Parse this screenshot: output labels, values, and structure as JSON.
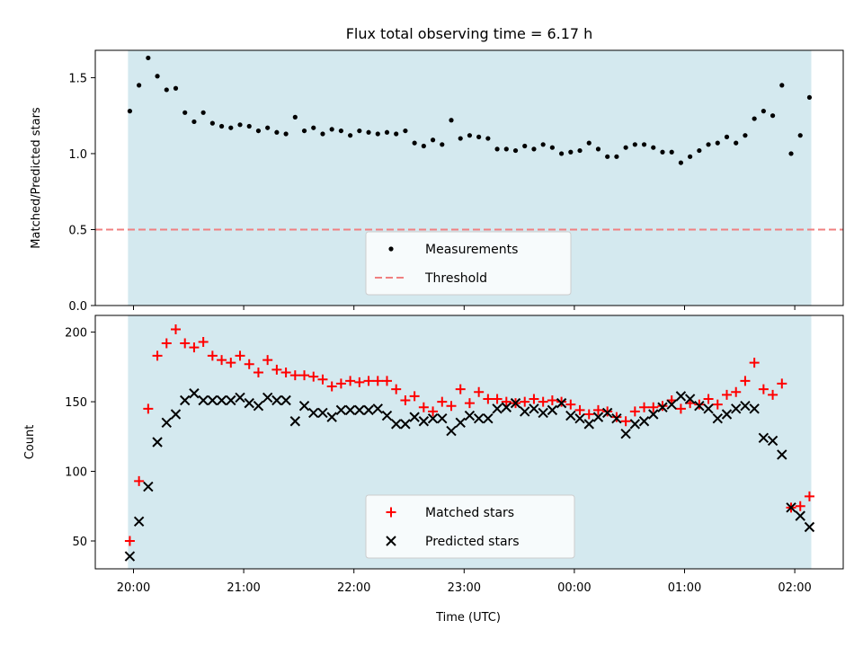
{
  "chart_data": {
    "title": "Flux total observing time = 6.17 h",
    "xlabel": "Time (UTC)",
    "x_ticks": [
      "20:00",
      "21:00",
      "22:00",
      "23:00",
      "00:00",
      "01:00",
      "02:00"
    ],
    "shaded_range": [
      "19:57",
      "02:09"
    ],
    "shade_color": "#d4e9ef",
    "panels": [
      {
        "type": "scatter",
        "ylabel": "Matched/Predicted stars",
        "ylim": [
          0,
          1.68
        ],
        "y_ticks": [
          "0.0",
          "0.5",
          "1.0",
          "1.5"
        ],
        "y_tick_values": [
          0,
          0.5,
          1.0,
          1.5
        ],
        "legend_position": "bottom-center",
        "series": [
          {
            "name": "Measurements",
            "marker": "dot",
            "color": "#000000",
            "points": [
              [
                "19:58",
                1.28
              ],
              [
                "20:03",
                1.45
              ],
              [
                "20:08",
                1.63
              ],
              [
                "20:13",
                1.51
              ],
              [
                "20:18",
                1.42
              ],
              [
                "20:23",
                1.43
              ],
              [
                "20:28",
                1.27
              ],
              [
                "20:33",
                1.21
              ],
              [
                "20:38",
                1.27
              ],
              [
                "20:43",
                1.2
              ],
              [
                "20:48",
                1.18
              ],
              [
                "20:53",
                1.17
              ],
              [
                "20:58",
                1.19
              ],
              [
                "21:03",
                1.18
              ],
              [
                "21:08",
                1.15
              ],
              [
                "21:13",
                1.17
              ],
              [
                "21:18",
                1.14
              ],
              [
                "21:23",
                1.13
              ],
              [
                "21:28",
                1.24
              ],
              [
                "21:33",
                1.15
              ],
              [
                "21:38",
                1.17
              ],
              [
                "21:43",
                1.13
              ],
              [
                "21:48",
                1.16
              ],
              [
                "21:53",
                1.15
              ],
              [
                "21:58",
                1.12
              ],
              [
                "22:03",
                1.15
              ],
              [
                "22:08",
                1.14
              ],
              [
                "22:13",
                1.13
              ],
              [
                "22:18",
                1.14
              ],
              [
                "22:23",
                1.13
              ],
              [
                "22:28",
                1.15
              ],
              [
                "22:33",
                1.07
              ],
              [
                "22:38",
                1.05
              ],
              [
                "22:43",
                1.09
              ],
              [
                "22:48",
                1.06
              ],
              [
                "22:53",
                1.22
              ],
              [
                "22:58",
                1.1
              ],
              [
                "23:03",
                1.12
              ],
              [
                "23:08",
                1.11
              ],
              [
                "23:13",
                1.1
              ],
              [
                "23:18",
                1.03
              ],
              [
                "23:23",
                1.03
              ],
              [
                "23:28",
                1.02
              ],
              [
                "23:33",
                1.05
              ],
              [
                "23:38",
                1.03
              ],
              [
                "23:43",
                1.06
              ],
              [
                "23:48",
                1.04
              ],
              [
                "23:53",
                1.0
              ],
              [
                "23:58",
                1.01
              ],
              [
                "00:03",
                1.02
              ],
              [
                "00:08",
                1.07
              ],
              [
                "00:13",
                1.03
              ],
              [
                "00:18",
                0.98
              ],
              [
                "00:23",
                0.98
              ],
              [
                "00:28",
                1.04
              ],
              [
                "00:33",
                1.06
              ],
              [
                "00:38",
                1.06
              ],
              [
                "00:43",
                1.04
              ],
              [
                "00:48",
                1.01
              ],
              [
                "00:53",
                1.01
              ],
              [
                "00:58",
                0.94
              ],
              [
                "01:03",
                0.98
              ],
              [
                "01:08",
                1.02
              ],
              [
                "01:13",
                1.06
              ],
              [
                "01:18",
                1.07
              ],
              [
                "01:23",
                1.11
              ],
              [
                "01:28",
                1.07
              ],
              [
                "01:33",
                1.12
              ],
              [
                "01:38",
                1.23
              ],
              [
                "01:43",
                1.28
              ],
              [
                "01:48",
                1.25
              ],
              [
                "01:53",
                1.45
              ],
              [
                "01:58",
                1.0
              ],
              [
                "02:03",
                1.12
              ],
              [
                "02:08",
                1.37
              ]
            ]
          },
          {
            "name": "Threshold",
            "type": "hline",
            "value": 0.5,
            "style": "dashed",
            "color": "#f08080"
          }
        ]
      },
      {
        "type": "scatter",
        "ylabel": "Count",
        "ylim": [
          30,
          212
        ],
        "y_ticks": [
          "50",
          "100",
          "150",
          "200"
        ],
        "y_tick_values": [
          50,
          100,
          150,
          200
        ],
        "legend_position": "bottom-center",
        "series": [
          {
            "name": "Matched stars",
            "marker": "plus",
            "color": "#ff0000",
            "points": [
              [
                "19:58",
                50
              ],
              [
                "20:03",
                93
              ],
              [
                "20:08",
                145
              ],
              [
                "20:13",
                183
              ],
              [
                "20:18",
                192
              ],
              [
                "20:23",
                202
              ],
              [
                "20:28",
                192
              ],
              [
                "20:33",
                189
              ],
              [
                "20:38",
                193
              ],
              [
                "20:43",
                183
              ],
              [
                "20:48",
                180
              ],
              [
                "20:53",
                178
              ],
              [
                "20:58",
                183
              ],
              [
                "21:03",
                177
              ],
              [
                "21:08",
                171
              ],
              [
                "21:13",
                180
              ],
              [
                "21:18",
                173
              ],
              [
                "21:23",
                171
              ],
              [
                "21:28",
                169
              ],
              [
                "21:33",
                169
              ],
              [
                "21:38",
                168
              ],
              [
                "21:43",
                166
              ],
              [
                "21:48",
                161
              ],
              [
                "21:53",
                163
              ],
              [
                "21:58",
                165
              ],
              [
                "22:03",
                164
              ],
              [
                "22:08",
                165
              ],
              [
                "22:13",
                165
              ],
              [
                "22:18",
                165
              ],
              [
                "22:23",
                159
              ],
              [
                "22:28",
                151
              ],
              [
                "22:33",
                154
              ],
              [
                "22:38",
                146
              ],
              [
                "22:43",
                143
              ],
              [
                "22:48",
                150
              ],
              [
                "22:53",
                147
              ],
              [
                "22:58",
                159
              ],
              [
                "23:03",
                149
              ],
              [
                "23:08",
                157
              ],
              [
                "23:13",
                152
              ],
              [
                "23:18",
                152
              ],
              [
                "23:23",
                150
              ],
              [
                "23:28",
                149
              ],
              [
                "23:33",
                150
              ],
              [
                "23:38",
                152
              ],
              [
                "23:43",
                150
              ],
              [
                "23:48",
                151
              ],
              [
                "23:53",
                150
              ],
              [
                "23:58",
                148
              ],
              [
                "00:03",
                144
              ],
              [
                "00:08",
                141
              ],
              [
                "00:13",
                144
              ],
              [
                "00:18",
                143
              ],
              [
                "00:23",
                139
              ],
              [
                "00:28",
                136
              ],
              [
                "00:33",
                143
              ],
              [
                "00:38",
                146
              ],
              [
                "00:43",
                146
              ],
              [
                "00:48",
                147
              ],
              [
                "00:53",
                151
              ],
              [
                "00:58",
                145
              ],
              [
                "01:03",
                149
              ],
              [
                "01:08",
                148
              ],
              [
                "01:13",
                152
              ],
              [
                "01:18",
                148
              ],
              [
                "01:23",
                155
              ],
              [
                "01:28",
                157
              ],
              [
                "01:33",
                165
              ],
              [
                "01:38",
                178
              ],
              [
                "01:43",
                159
              ],
              [
                "01:48",
                155
              ],
              [
                "01:53",
                163
              ],
              [
                "01:58",
                74
              ],
              [
                "02:03",
                75
              ],
              [
                "02:08",
                82
              ]
            ]
          },
          {
            "name": "Predicted stars",
            "marker": "x",
            "color": "#000000",
            "points": [
              [
                "19:58",
                39
              ],
              [
                "20:03",
                64
              ],
              [
                "20:08",
                89
              ],
              [
                "20:13",
                121
              ],
              [
                "20:18",
                135
              ],
              [
                "20:23",
                141
              ],
              [
                "20:28",
                151
              ],
              [
                "20:33",
                156
              ],
              [
                "20:38",
                151
              ],
              [
                "20:43",
                151
              ],
              [
                "20:48",
                151
              ],
              [
                "20:53",
                151
              ],
              [
                "20:58",
                153
              ],
              [
                "21:03",
                149
              ],
              [
                "21:08",
                147
              ],
              [
                "21:13",
                153
              ],
              [
                "21:18",
                151
              ],
              [
                "21:23",
                151
              ],
              [
                "21:28",
                136
              ],
              [
                "21:33",
                147
              ],
              [
                "21:38",
                142
              ],
              [
                "21:43",
                142
              ],
              [
                "21:48",
                139
              ],
              [
                "21:53",
                144
              ],
              [
                "21:58",
                144
              ],
              [
                "22:03",
                144
              ],
              [
                "22:08",
                144
              ],
              [
                "22:13",
                145
              ],
              [
                "22:18",
                140
              ],
              [
                "22:23",
                134
              ],
              [
                "22:28",
                134
              ],
              [
                "22:33",
                139
              ],
              [
                "22:38",
                136
              ],
              [
                "22:43",
                138
              ],
              [
                "22:48",
                138
              ],
              [
                "22:53",
                129
              ],
              [
                "22:58",
                135
              ],
              [
                "23:03",
                140
              ],
              [
                "23:08",
                138
              ],
              [
                "23:13",
                138
              ],
              [
                "23:18",
                145
              ],
              [
                "23:23",
                146
              ],
              [
                "23:28",
                149
              ],
              [
                "23:33",
                143
              ],
              [
                "23:38",
                145
              ],
              [
                "23:43",
                142
              ],
              [
                "23:48",
                144
              ],
              [
                "23:53",
                149
              ],
              [
                "23:58",
                140
              ],
              [
                "00:03",
                138
              ],
              [
                "00:08",
                134
              ],
              [
                "00:13",
                139
              ],
              [
                "00:18",
                142
              ],
              [
                "00:23",
                138
              ],
              [
                "00:28",
                127
              ],
              [
                "00:33",
                134
              ],
              [
                "00:38",
                136
              ],
              [
                "00:43",
                141
              ],
              [
                "00:48",
                146
              ],
              [
                "00:53",
                148
              ],
              [
                "00:58",
                154
              ],
              [
                "01:03",
                152
              ],
              [
                "01:08",
                147
              ],
              [
                "01:13",
                145
              ],
              [
                "01:18",
                138
              ],
              [
                "01:23",
                141
              ],
              [
                "01:28",
                145
              ],
              [
                "01:33",
                147
              ],
              [
                "01:38",
                145
              ],
              [
                "01:43",
                124
              ],
              [
                "01:48",
                122
              ],
              [
                "01:53",
                112
              ],
              [
                "01:58",
                74
              ],
              [
                "02:03",
                68
              ],
              [
                "02:08",
                60
              ]
            ]
          }
        ]
      }
    ]
  }
}
